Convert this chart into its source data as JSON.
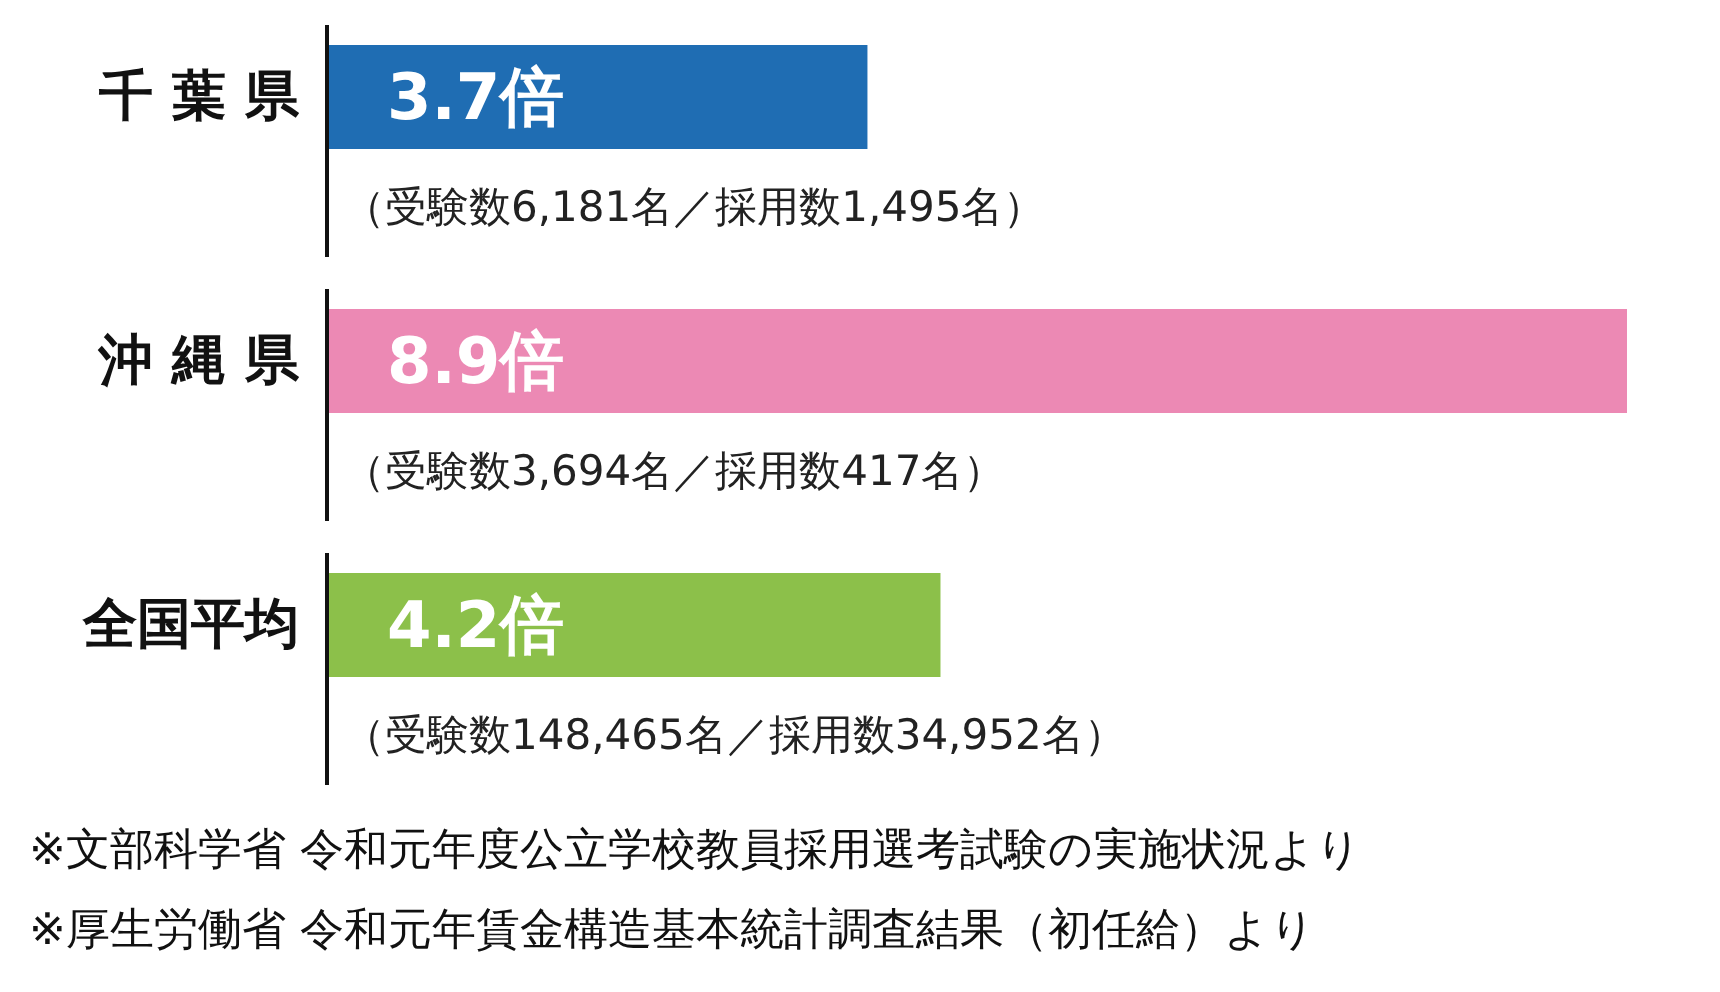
{
  "chart_data": {
    "type": "bar",
    "orientation": "horizontal",
    "categories": [
      "千 葉 県",
      "沖 縄 県",
      "全国平均"
    ],
    "values": [
      3.7,
      8.9,
      4.2
    ],
    "colors": [
      "#1f6db3",
      "#ec89b4",
      "#8cc04a"
    ],
    "value_labels": [
      "3.7倍",
      "8.9倍",
      "4.2倍"
    ],
    "annotations": [
      "（受験数6,181名／採用数1,495名）",
      "（受験数3,694名／採用数417名）",
      "（受験数148,465名／採用数34,952名）",
      "※文部科学省 令和元年度公立学校教員採用選考試験の実施状況より",
      "※厚生労働省 令和元年賃金構造基本統計調査結果（初任給）より"
    ]
  }
}
